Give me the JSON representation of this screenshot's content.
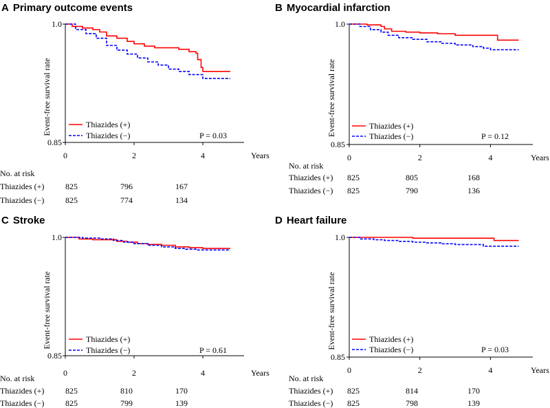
{
  "chart_data": [
    {
      "type": "line",
      "panel_letter": "A",
      "title": "Primary outcome events",
      "xlabel": "Years",
      "ylabel": "Event-free survival rate",
      "xlim": [
        0,
        5.2
      ],
      "ylim": [
        0.85,
        1.0
      ],
      "xticks": [
        "0",
        "2",
        "4"
      ],
      "yticks": [
        "1.0",
        "0.85"
      ],
      "p_value": "P = 0.03",
      "legend_position": "bottom-left",
      "series": [
        {
          "name": "Thiazides (+)",
          "color": "#ff0000",
          "style": "solid",
          "x": [
            0,
            0.2,
            0.5,
            0.8,
            1.0,
            1.2,
            1.5,
            1.8,
            2.0,
            2.3,
            2.6,
            3.0,
            3.3,
            3.6,
            3.8,
            3.85,
            3.95,
            4.0,
            4.2,
            4.8
          ],
          "y": [
            1.0,
            0.997,
            0.995,
            0.993,
            0.99,
            0.985,
            0.982,
            0.978,
            0.975,
            0.972,
            0.97,
            0.97,
            0.968,
            0.965,
            0.963,
            0.955,
            0.945,
            0.94,
            0.94,
            0.94
          ]
        },
        {
          "name": "Thiazides (−)",
          "color": "#0000ff",
          "style": "dashed",
          "x": [
            0,
            0.3,
            0.6,
            0.9,
            1.2,
            1.5,
            1.8,
            2.1,
            2.4,
            2.7,
            3.0,
            3.3,
            3.6,
            4.0,
            4.8
          ],
          "y": [
            1.0,
            0.993,
            0.988,
            0.982,
            0.973,
            0.967,
            0.962,
            0.957,
            0.952,
            0.948,
            0.943,
            0.94,
            0.936,
            0.931,
            0.931
          ]
        }
      ],
      "risk_table": {
        "header": "No. at risk",
        "rows": [
          {
            "label": "Thiazides (+)",
            "values": [
              "825",
              "796",
              "167"
            ]
          },
          {
            "label": "Thiazides (−)",
            "values": [
              "825",
              "774",
              "134"
            ]
          }
        ]
      }
    },
    {
      "type": "line",
      "panel_letter": "B",
      "title": "Myocardial infarction",
      "xlabel": "Years",
      "ylabel": "Event-free survival rate",
      "xlim": [
        0,
        5.2
      ],
      "ylim": [
        0.85,
        1.0
      ],
      "xticks": [
        "0",
        "2",
        "4"
      ],
      "yticks": [
        "1.0",
        "0.85"
      ],
      "p_value": "P = 0.12",
      "legend_position": "bottom-left",
      "series": [
        {
          "name": "Thiazides (+)",
          "color": "#ff0000",
          "style": "solid",
          "x": [
            0,
            0.5,
            0.9,
            1.0,
            1.2,
            1.6,
            2.0,
            2.5,
            3.0,
            3.5,
            4.0,
            4.2,
            4.8
          ],
          "y": [
            1.0,
            0.999,
            0.997,
            0.994,
            0.991,
            0.99,
            0.989,
            0.988,
            0.986,
            0.986,
            0.986,
            0.98,
            0.98
          ]
        },
        {
          "name": "Thiazides (−)",
          "color": "#0000ff",
          "style": "dashed",
          "x": [
            0,
            0.3,
            0.6,
            0.9,
            1.1,
            1.4,
            1.8,
            2.2,
            2.6,
            3.0,
            3.5,
            3.8,
            4.0,
            4.8
          ],
          "y": [
            1.0,
            0.997,
            0.993,
            0.99,
            0.986,
            0.983,
            0.981,
            0.978,
            0.976,
            0.974,
            0.972,
            0.97,
            0.968,
            0.968
          ]
        }
      ],
      "risk_table": {
        "header": "No. at risk",
        "rows": [
          {
            "label": "Thiazides (+)",
            "values": [
              "825",
              "805",
              "168"
            ]
          },
          {
            "label": "Thiazides (−)",
            "values": [
              "825",
              "790",
              "136"
            ]
          }
        ]
      }
    },
    {
      "type": "line",
      "panel_letter": "C",
      "title": "Stroke",
      "xlabel": "Years",
      "ylabel": "Event-free survival rate",
      "xlim": [
        0,
        5.2
      ],
      "ylim": [
        0.85,
        1.0
      ],
      "xticks": [
        "0",
        "2",
        "4"
      ],
      "yticks": [
        "1.0",
        "0.85"
      ],
      "p_value": "P = 0.61",
      "legend_position": "bottom-left",
      "series": [
        {
          "name": "Thiazides (+)",
          "color": "#ff0000",
          "style": "solid",
          "x": [
            0,
            0.4,
            0.8,
            1.2,
            1.5,
            1.8,
            2.1,
            2.4,
            2.8,
            3.2,
            3.6,
            4.0,
            4.8
          ],
          "y": [
            1.0,
            0.998,
            0.997,
            0.997,
            0.995,
            0.994,
            0.992,
            0.991,
            0.99,
            0.988,
            0.987,
            0.986,
            0.986
          ]
        },
        {
          "name": "Thiazides (−)",
          "color": "#0000ff",
          "style": "dashed",
          "x": [
            0,
            0.5,
            1.0,
            1.4,
            1.7,
            2.0,
            2.4,
            2.8,
            3.2,
            3.5,
            3.8,
            4.2,
            4.8
          ],
          "y": [
            1.0,
            0.999,
            0.998,
            0.996,
            0.994,
            0.992,
            0.99,
            0.988,
            0.986,
            0.985,
            0.984,
            0.984,
            0.984
          ]
        }
      ],
      "risk_table": {
        "header": "No. at risk",
        "rows": [
          {
            "label": "Thiazides (+)",
            "values": [
              "825",
              "810",
              "170"
            ]
          },
          {
            "label": "Thiazides (−)",
            "values": [
              "825",
              "799",
              "139"
            ]
          }
        ]
      }
    },
    {
      "type": "line",
      "panel_letter": "D",
      "title": "Heart failure",
      "xlabel": "Years",
      "ylabel": "Event-free survival rate",
      "xlim": [
        0,
        5.2
      ],
      "ylim": [
        0.85,
        1.0
      ],
      "xticks": [
        "0",
        "2",
        "4"
      ],
      "yticks": [
        "1.0",
        "0.85"
      ],
      "p_value": "P = 0.03",
      "legend_position": "bottom-left",
      "series": [
        {
          "name": "Thiazides (+)",
          "color": "#ff0000",
          "style": "solid",
          "x": [
            0,
            1.5,
            1.8,
            3.0,
            4.0,
            4.1,
            4.8
          ],
          "y": [
            1.0,
            1.0,
            0.999,
            0.999,
            0.999,
            0.996,
            0.996
          ]
        },
        {
          "name": "Thiazides (−)",
          "color": "#0000ff",
          "style": "dashed",
          "x": [
            0,
            0.3,
            0.7,
            1.0,
            1.4,
            1.8,
            2.2,
            2.6,
            3.0,
            3.5,
            3.8,
            4.8
          ],
          "y": [
            1.0,
            0.998,
            0.997,
            0.996,
            0.995,
            0.994,
            0.993,
            0.992,
            0.991,
            0.991,
            0.989,
            0.989
          ]
        }
      ],
      "risk_table": {
        "header": "No. at risk",
        "rows": [
          {
            "label": "Thiazides (+)",
            "values": [
              "825",
              "814",
              "170"
            ]
          },
          {
            "label": "Thiazides (−)",
            "values": [
              "825",
              "798",
              "139"
            ]
          }
        ]
      }
    }
  ]
}
